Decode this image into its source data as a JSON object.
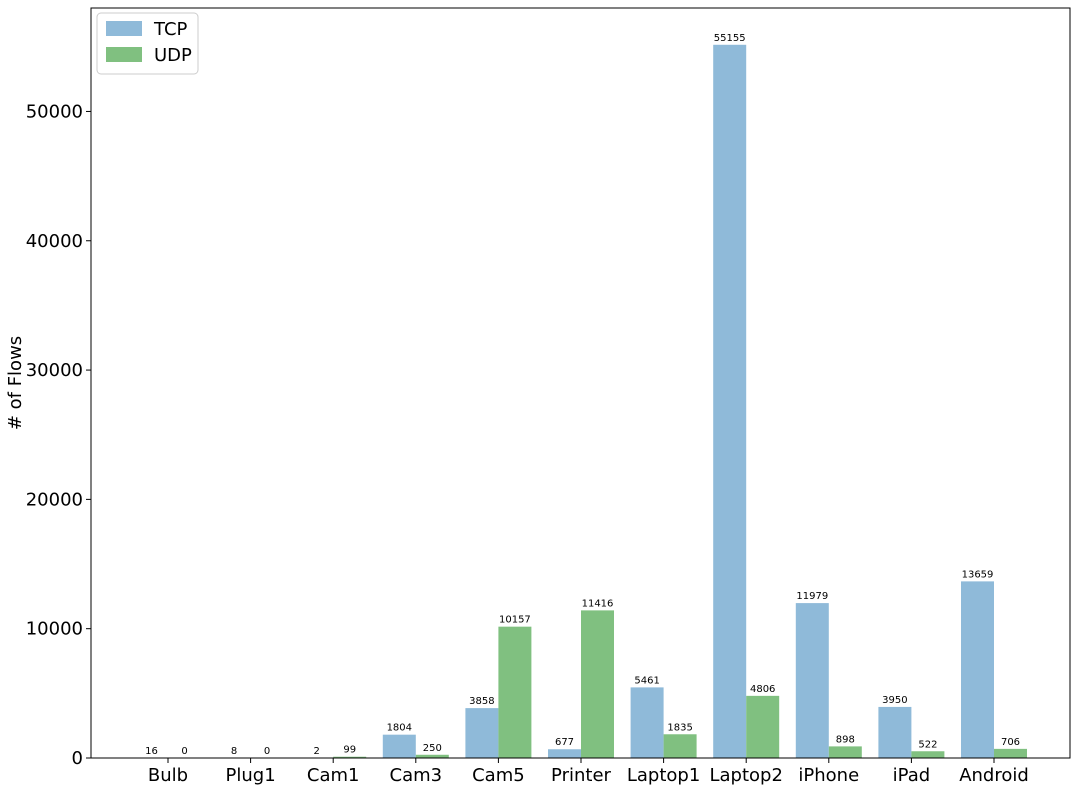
{
  "chart_data": {
    "type": "bar",
    "categories": [
      "Bulb",
      "Plug1",
      "Cam1",
      "Cam3",
      "Cam5",
      "Printer",
      "Laptop1",
      "Laptop2",
      "iPhone",
      "iPad",
      "Android"
    ],
    "series": [
      {
        "name": "TCP",
        "values": [
          16,
          8,
          2,
          1804,
          3858,
          677,
          5461,
          55155,
          11979,
          3950,
          13659
        ],
        "color": "#8fbad9"
      },
      {
        "name": "UDP",
        "values": [
          0,
          0,
          99,
          250,
          10157,
          11416,
          1835,
          4806,
          898,
          522,
          706
        ],
        "color": "#80c080"
      }
    ],
    "title": "",
    "xlabel": "",
    "ylabel": "# of Flows",
    "ylim": [
      0,
      58000
    ],
    "yticks": [
      0,
      10000,
      20000,
      30000,
      40000,
      50000
    ],
    "legend_position": "top-left",
    "grid": false
  }
}
